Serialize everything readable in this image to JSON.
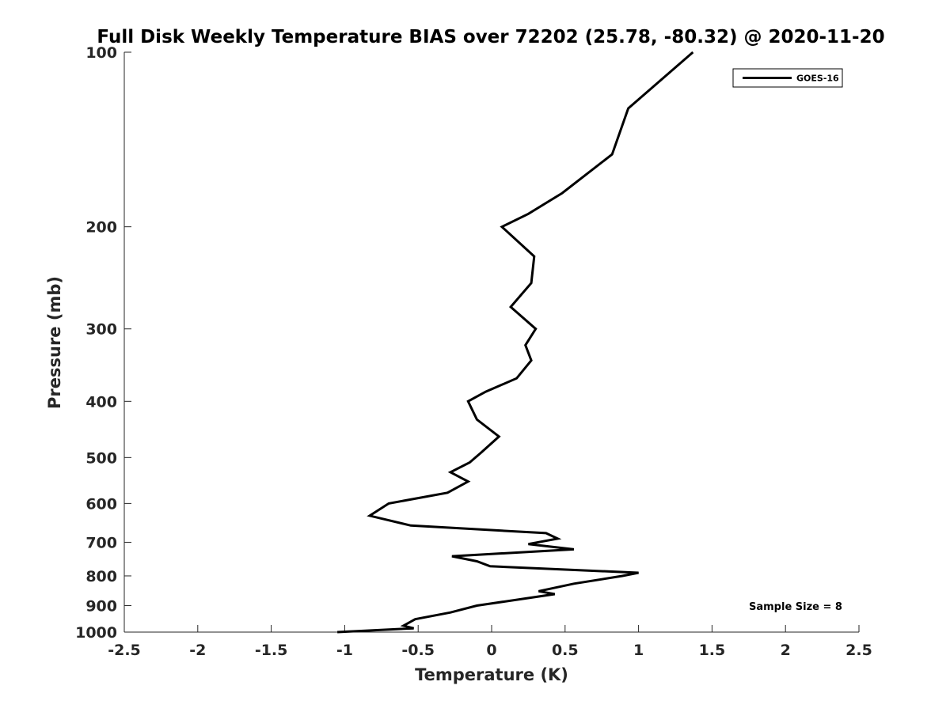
{
  "chart_data": {
    "type": "line",
    "title": "Full Disk Weekly Temperature BIAS over 72202 (25.78, -80.32) @ 2020-11-20",
    "xlabel": "Temperature (K)",
    "ylabel": "Pressure (mb)",
    "xlim": [
      -2.5,
      2.5
    ],
    "ylim": [
      1000,
      100
    ],
    "yscale": "log",
    "x_ticks": [
      -2.5,
      -2,
      -1.5,
      -1,
      -0.5,
      0,
      0.5,
      1,
      1.5,
      2,
      2.5
    ],
    "x_tick_labels": [
      "-2.5",
      "-2",
      "-1.5",
      "-1",
      "-0.5",
      "0",
      "0.5",
      "1",
      "1.5",
      "2",
      "2.5"
    ],
    "y_ticks": [
      100,
      200,
      300,
      400,
      500,
      600,
      700,
      800,
      900,
      1000
    ],
    "y_tick_labels": [
      "100",
      "200",
      "300",
      "400",
      "500",
      "600",
      "700",
      "800",
      "900",
      "1000"
    ],
    "grid": false,
    "legend_position": "top-right",
    "annotation": "Sample Size = 8",
    "series": [
      {
        "name": "GOES-16",
        "color": "#000000",
        "points": [
          {
            "x": 1.37,
            "p": 100
          },
          {
            "x": 0.93,
            "p": 125
          },
          {
            "x": 0.82,
            "p": 150
          },
          {
            "x": 0.48,
            "p": 175
          },
          {
            "x": 0.25,
            "p": 190
          },
          {
            "x": 0.07,
            "p": 200
          },
          {
            "x": 0.29,
            "p": 225
          },
          {
            "x": 0.27,
            "p": 250
          },
          {
            "x": 0.13,
            "p": 275
          },
          {
            "x": 0.3,
            "p": 300
          },
          {
            "x": 0.23,
            "p": 320
          },
          {
            "x": 0.27,
            "p": 340
          },
          {
            "x": 0.17,
            "p": 365
          },
          {
            "x": -0.04,
            "p": 385
          },
          {
            "x": -0.16,
            "p": 400
          },
          {
            "x": -0.1,
            "p": 430
          },
          {
            "x": 0.05,
            "p": 460
          },
          {
            "x": -0.07,
            "p": 490
          },
          {
            "x": -0.15,
            "p": 510
          },
          {
            "x": -0.28,
            "p": 530
          },
          {
            "x": -0.16,
            "p": 550
          },
          {
            "x": -0.3,
            "p": 575
          },
          {
            "x": -0.7,
            "p": 600
          },
          {
            "x": -0.83,
            "p": 630
          },
          {
            "x": -0.55,
            "p": 655
          },
          {
            "x": 0.37,
            "p": 675
          },
          {
            "x": 0.45,
            "p": 690
          },
          {
            "x": 0.25,
            "p": 705
          },
          {
            "x": 0.56,
            "p": 720
          },
          {
            "x": -0.27,
            "p": 740
          },
          {
            "x": -0.1,
            "p": 755
          },
          {
            "x": -0.01,
            "p": 770
          },
          {
            "x": 1.0,
            "p": 790
          },
          {
            "x": 0.89,
            "p": 800
          },
          {
            "x": 0.56,
            "p": 825
          },
          {
            "x": 0.32,
            "p": 850
          },
          {
            "x": 0.43,
            "p": 860
          },
          {
            "x": 0.23,
            "p": 875
          },
          {
            "x": -0.1,
            "p": 900
          },
          {
            "x": -0.28,
            "p": 925
          },
          {
            "x": -0.52,
            "p": 950
          },
          {
            "x": -0.6,
            "p": 975
          },
          {
            "x": -0.53,
            "p": 985
          },
          {
            "x": -1.05,
            "p": 1000
          }
        ]
      }
    ]
  }
}
